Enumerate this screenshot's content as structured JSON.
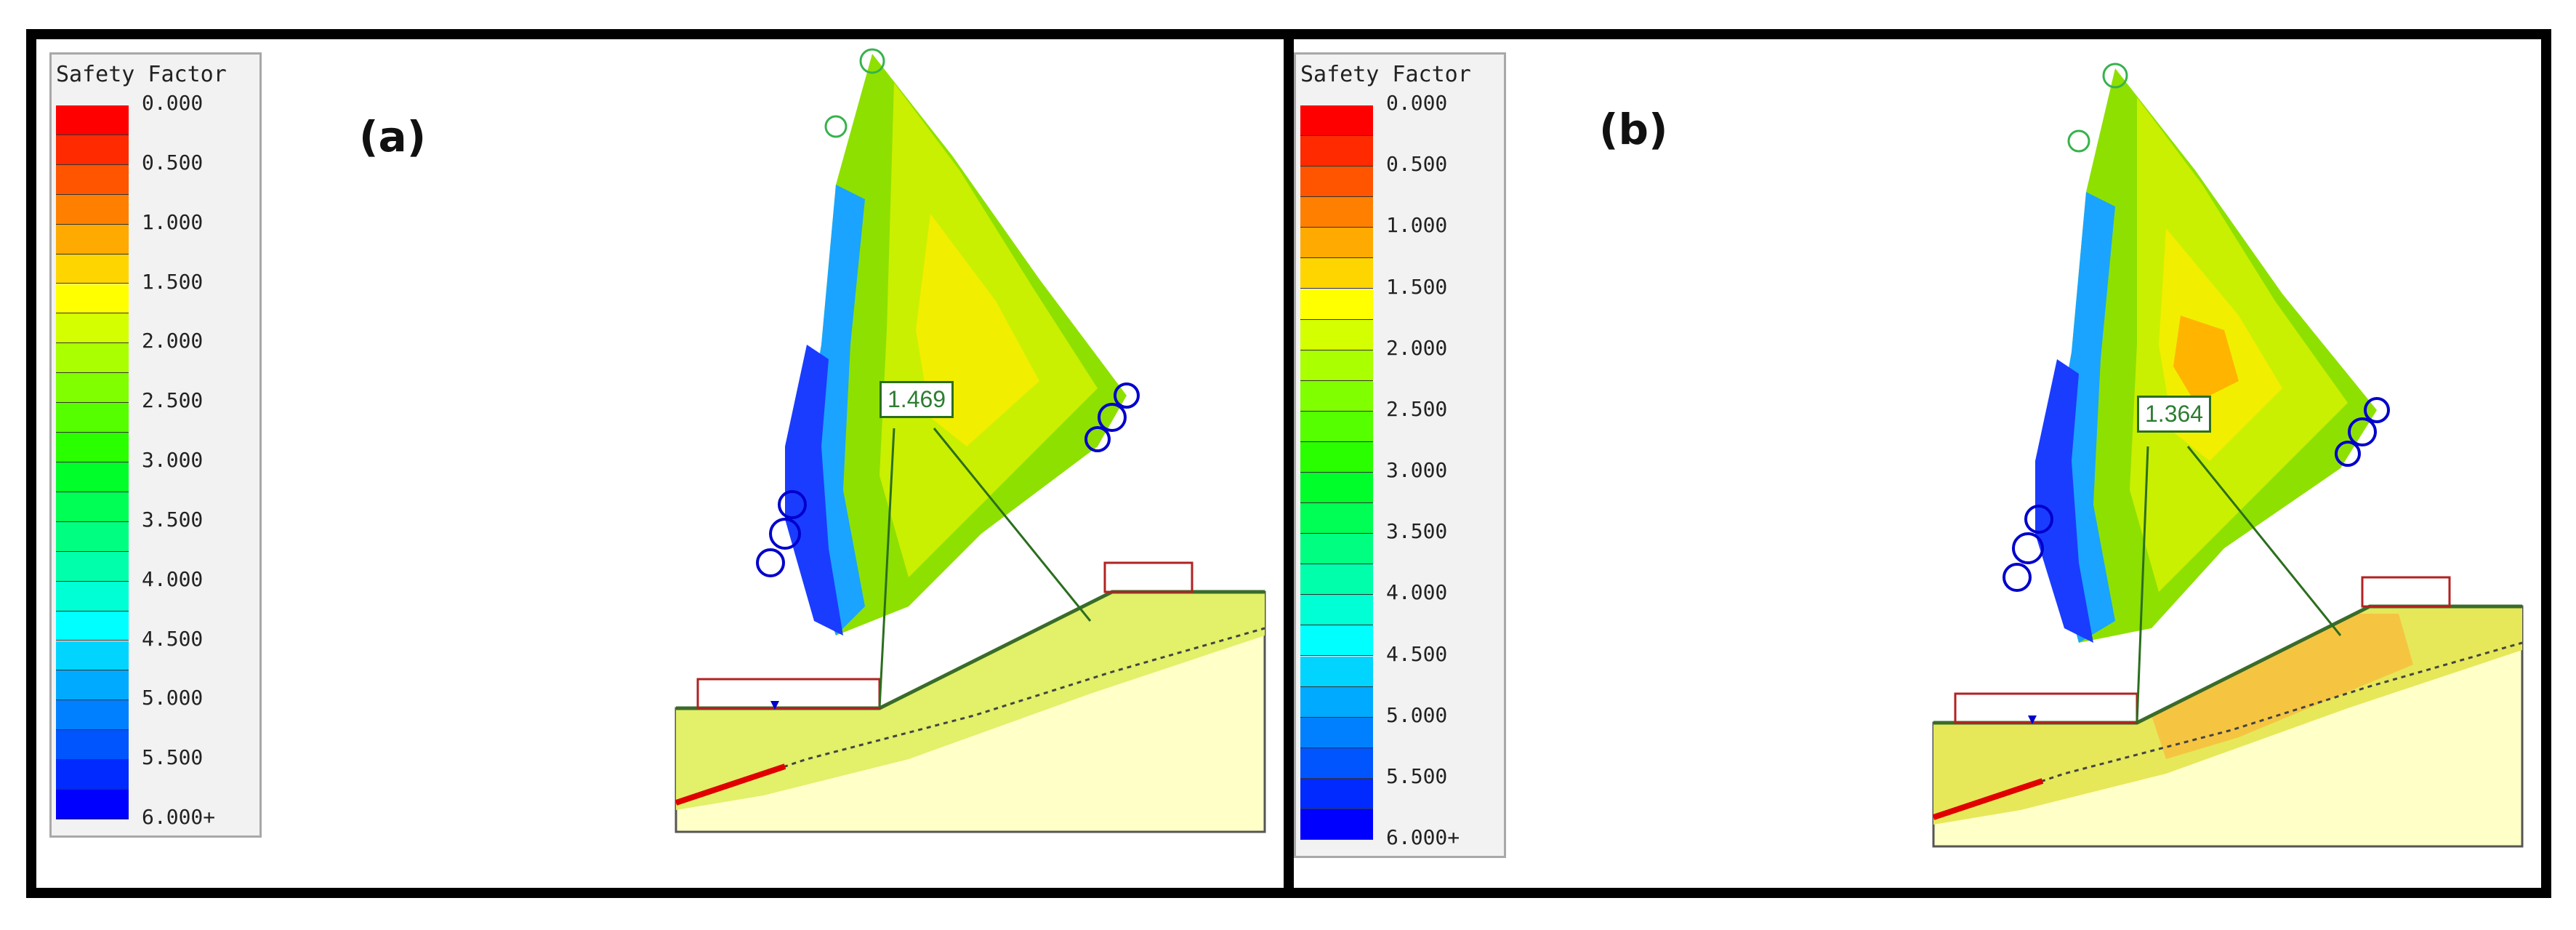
{
  "panels": [
    {
      "label": "(a)",
      "legend_title": "Safety Factor",
      "legend_labels": [
        "0.000",
        "0.500",
        "1.000",
        "1.500",
        "2.000",
        "2.500",
        "3.000",
        "3.500",
        "4.000",
        "4.500",
        "5.000",
        "5.500",
        "6.000+"
      ],
      "min_safety_factor": "1.469"
    },
    {
      "label": "(b)",
      "legend_title": "Safety Factor",
      "legend_labels": [
        "0.000",
        "0.500",
        "1.000",
        "1.500",
        "2.000",
        "2.500",
        "3.000",
        "3.500",
        "4.000",
        "4.500",
        "5.000",
        "5.500",
        "6.000+"
      ],
      "min_safety_factor": "1.364"
    }
  ],
  "legend_colors": [
    "#ff0000",
    "#ff2a00",
    "#ff5500",
    "#ff8000",
    "#ffaa00",
    "#ffd500",
    "#ffff00",
    "#d4ff00",
    "#aaff00",
    "#80ff00",
    "#55ff00",
    "#2aff00",
    "#00ff2a",
    "#00ff55",
    "#00ff80",
    "#00ffaa",
    "#00ffd5",
    "#00ffff",
    "#00d4ff",
    "#00aaff",
    "#0080ff",
    "#0055ff",
    "#002aff",
    "#0000ff"
  ],
  "colors": {
    "frame": "#000000",
    "model_fill": "#ffffc8",
    "slope_surface": "#3a6b2a",
    "min_surface_line": "#2b6e1e",
    "load_box": "#b22222",
    "centers_blue": "#0000cc"
  }
}
